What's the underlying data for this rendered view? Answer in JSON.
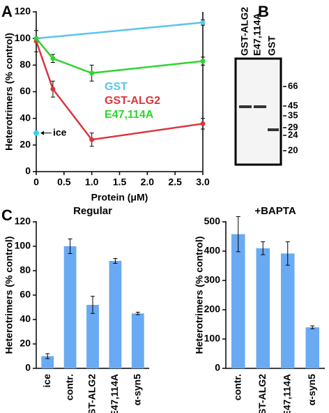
{
  "panel_labels": [
    "A",
    "B",
    "C"
  ],
  "gel": {
    "lanes": [
      "GST-ALG2",
      "E47,114A",
      "GST"
    ],
    "markers": [
      66,
      45,
      35,
      29,
      24,
      20
    ]
  },
  "chart_data": [
    {
      "type": "line",
      "y_label": "Heterotrimers (% control)",
      "x_label": "Protein (μM)",
      "xlim": [
        0,
        3
      ],
      "xticks": [
        0,
        0.5,
        {
          "value": 1,
          "label": "1.0"
        },
        1.5,
        {
          "value": 2,
          "label": "2.0"
        },
        2.5,
        {
          "value": 3,
          "label": "3.0"
        }
      ],
      "ylim": [
        0,
        120
      ],
      "yticks": [
        0,
        20,
        40,
        60,
        80,
        100,
        120
      ],
      "series": [
        {
          "name": "GST",
          "color": "#5bc4ec",
          "x": [
            0,
            3
          ],
          "values": [
            100,
            112
          ],
          "errors": [
            null,
            2
          ]
        },
        {
          "name": "GST-ALG2",
          "color": "#d9363c",
          "x": [
            0,
            0.3,
            1,
            3
          ],
          "values": [
            98,
            62,
            24,
            36
          ],
          "errors": [
            8,
            6,
            5,
            4
          ]
        },
        {
          "name": "E47,114A",
          "color": "#2ed52e",
          "x": [
            0,
            0.3,
            1,
            3
          ],
          "values": [
            100,
            85,
            74,
            83
          ],
          "errors": [
            null,
            3,
            6,
            3
          ]
        }
      ],
      "ice": {
        "label": "ice",
        "x": 0,
        "value": 29,
        "color": "#33d4f0"
      }
    },
    {
      "type": "bar",
      "title": "Regular",
      "y_label": "Heterotrimers (% control)",
      "categories": [
        "ice",
        "contr.",
        "GST-ALG2",
        "E47,114A",
        "α-syn5"
      ],
      "values": [
        10,
        100,
        52,
        88,
        45
      ],
      "errors": [
        2,
        6,
        7,
        2,
        1
      ],
      "color": "#6aaaf2",
      "ylim": [
        0,
        120
      ],
      "yticks": [
        0,
        20,
        40,
        60,
        80,
        100,
        120
      ]
    },
    {
      "type": "bar",
      "title": "+BAPTA",
      "y_label": "Heterotrimers (% control)",
      "categories": [
        "contr.",
        "GST-ALG2",
        "E47,114A",
        "α-syn5"
      ],
      "values": [
        458,
        410,
        392,
        140
      ],
      "errors": [
        60,
        22,
        40,
        5
      ],
      "color": "#6aaaf2",
      "ylim": [
        0,
        500
      ],
      "yticks": [
        0,
        100,
        200,
        300,
        400,
        500
      ]
    }
  ]
}
